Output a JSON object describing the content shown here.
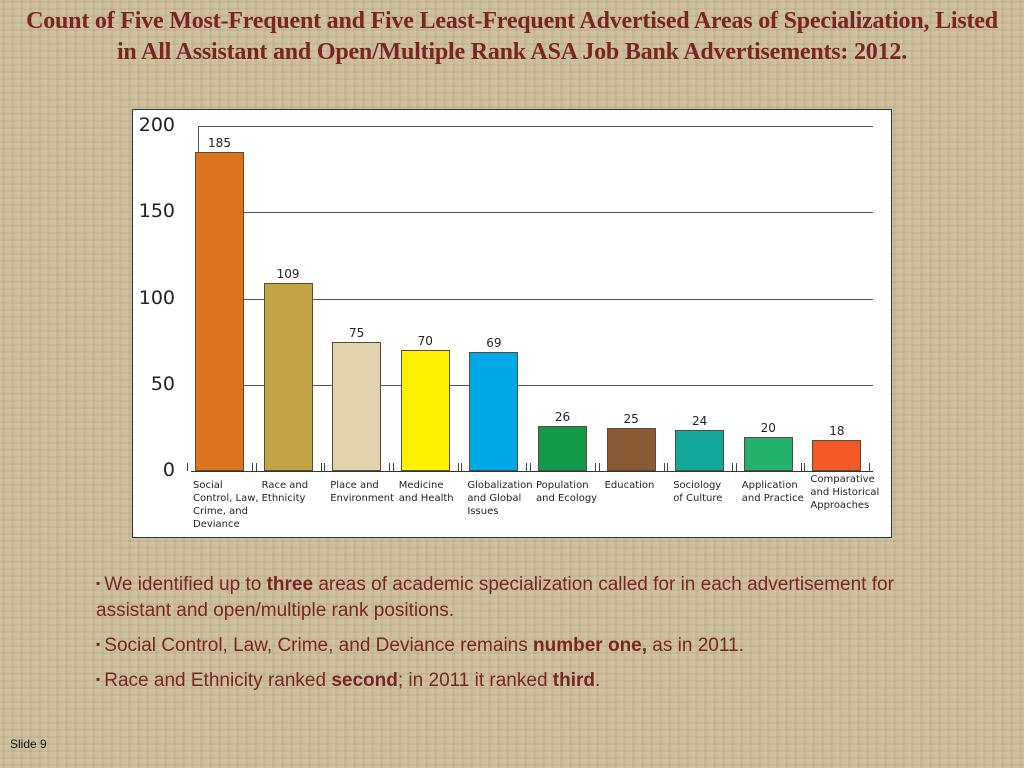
{
  "title": "Count of Five Most-Frequent and Five Least-Frequent Advertised Areas of Specialization, Listed in All Assistant and Open/Multiple Rank ASA Job Bank Advertisements: 2012.",
  "chart_data": {
    "type": "bar",
    "title": "Count of Five Most-Frequent and Five Least-Frequent Advertised Areas of Specialization, Listed in All Assistant and Open/Multiple Rank ASA Job Bank Advertisements: 2012.",
    "xlabel": "",
    "ylabel": "",
    "ylim": [
      0,
      200
    ],
    "yticks": [
      0,
      50,
      100,
      150,
      200
    ],
    "grid": true,
    "legend": "none",
    "categories": [
      "Social Control, Law, Crime, and Deviance",
      "Race and Ethnicity",
      "Place and Environment",
      "Medicine and Health",
      "Globalization and Global Issues",
      "Population and Ecology",
      "Education",
      "Sociology of Culture",
      "Application and Practice",
      "Comparative and Historical Approaches"
    ],
    "values": [
      185,
      109,
      75,
      70,
      69,
      26,
      25,
      24,
      20,
      18
    ],
    "colors": [
      "#de7420",
      "#c2a447",
      "#e1d3ab",
      "#fff200",
      "#00a9e6",
      "#12994a",
      "#8a5a35",
      "#13a89e",
      "#24b16c",
      "#f15a24"
    ],
    "category_lines": [
      [
        "Social",
        "Control, Law,",
        "Crime, and",
        "Deviance"
      ],
      [
        "Race and",
        "Ethnicity"
      ],
      [
        "Place and",
        "Environment"
      ],
      [
        "Medicine",
        "and Health"
      ],
      [
        "Globalization",
        "and Global",
        "Issues"
      ],
      [
        "Population",
        "and Ecology"
      ],
      [
        "Education"
      ],
      [
        "Sociology",
        "of Culture"
      ],
      [
        "Application",
        "and Practice"
      ],
      [
        "Comparative",
        "and Historical",
        "Approaches"
      ]
    ]
  },
  "bullets": [
    {
      "pre": "We identified up to ",
      "bold": "three",
      "post": " areas of academic specialization called for in each advertisement for assistant and open/multiple rank positions.",
      "bold2": "",
      "post2": ""
    },
    {
      "pre": "Social Control, Law, Crime, and Deviance remains ",
      "bold": "number one,",
      "post": " as in 2011.",
      "bold2": "",
      "post2": ""
    },
    {
      "pre": "Race and Ethnicity ranked ",
      "bold": "second",
      "post": "; in 2011 it ranked ",
      "bold2": "third",
      "post2": "."
    }
  ],
  "bullet_marker": "▪",
  "slide_number": "Slide 9"
}
